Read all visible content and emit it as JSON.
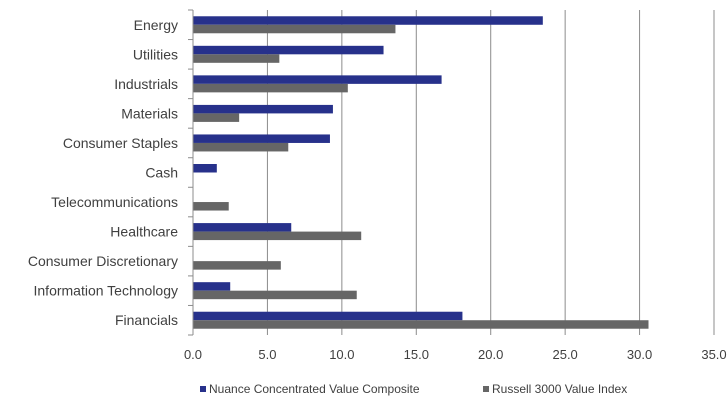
{
  "chart_data": {
    "type": "bar",
    "orientation": "horizontal",
    "categories": [
      "Energy",
      "Utilities",
      "Industrials",
      "Materials",
      "Consumer Staples",
      "Cash",
      "Telecommunications",
      "Healthcare",
      "Consumer Discretionary",
      "Information Technology",
      "Financials"
    ],
    "series": [
      {
        "name": "Nuance Concentrated Value Composite",
        "color": "#27318b",
        "values": [
          23.5,
          12.8,
          16.7,
          9.4,
          9.2,
          1.6,
          0.0,
          6.6,
          0.0,
          2.5,
          18.1
        ]
      },
      {
        "name": "Russell 3000 Value Index",
        "color": "#666666",
        "values": [
          13.6,
          5.8,
          10.4,
          3.1,
          6.4,
          0.0,
          2.4,
          11.3,
          5.9,
          11.0,
          30.6
        ]
      }
    ],
    "xlim": [
      0,
      35
    ],
    "xticks": [
      "0.0",
      "5.0",
      "10.0",
      "15.0",
      "20.0",
      "25.0",
      "30.0",
      "35.0"
    ],
    "grid": "vertical",
    "legend_position": "bottom",
    "title": "",
    "xlabel": "",
    "ylabel": ""
  }
}
